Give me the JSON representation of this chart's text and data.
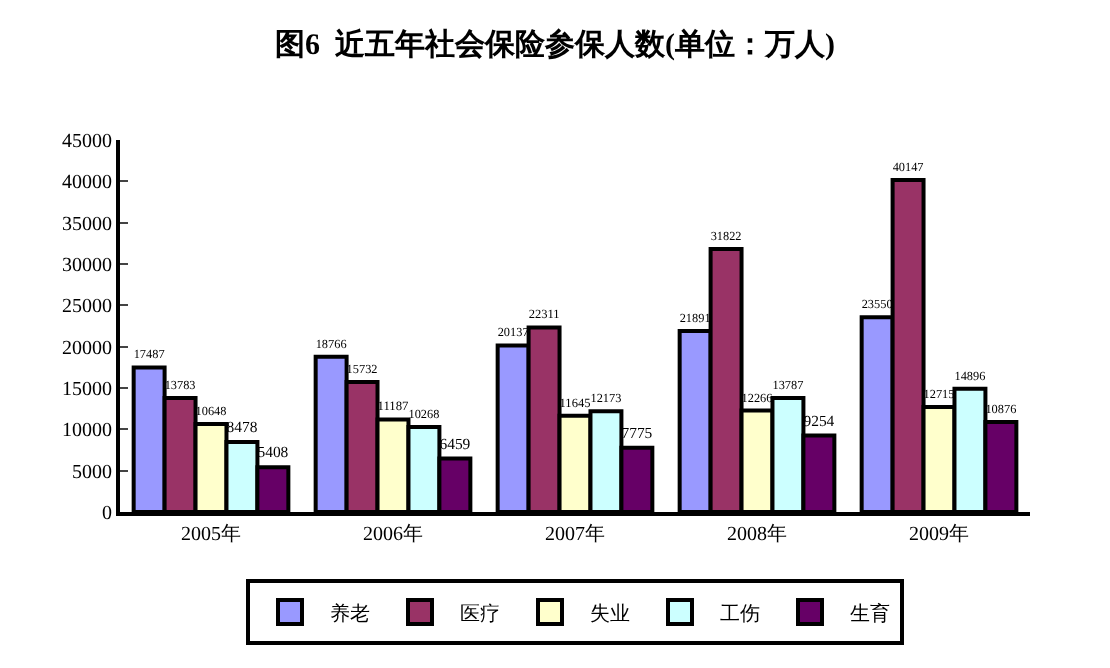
{
  "chart_data": {
    "type": "bar",
    "title": "图6  近五年社会保险参保人数(单位：万人)",
    "categories": [
      "2005年",
      "2006年",
      "2007年",
      "2008年",
      "2009年"
    ],
    "series": [
      {
        "name": "养老",
        "color": "#9999ff",
        "values": [
          17487,
          18766,
          20137,
          21891,
          23550
        ]
      },
      {
        "name": "医疗",
        "color": "#993366",
        "values": [
          13783,
          15732,
          22311,
          31822,
          40147
        ]
      },
      {
        "name": "失业",
        "color": "#ffffcc",
        "values": [
          10648,
          11187,
          11645,
          12266,
          12715
        ]
      },
      {
        "name": "工伤",
        "color": "#ccffff",
        "values": [
          8478,
          10268,
          12173,
          13787,
          14896
        ]
      },
      {
        "name": "生育",
        "color": "#660066",
        "values": [
          5408,
          6459,
          7775,
          9254,
          10876
        ]
      }
    ],
    "ylim": [
      0,
      45000
    ],
    "yticks": [
      0,
      5000,
      10000,
      15000,
      20000,
      25000,
      30000,
      35000,
      40000,
      45000
    ],
    "grid": false,
    "legend": "bottom",
    "data_labels": true
  }
}
